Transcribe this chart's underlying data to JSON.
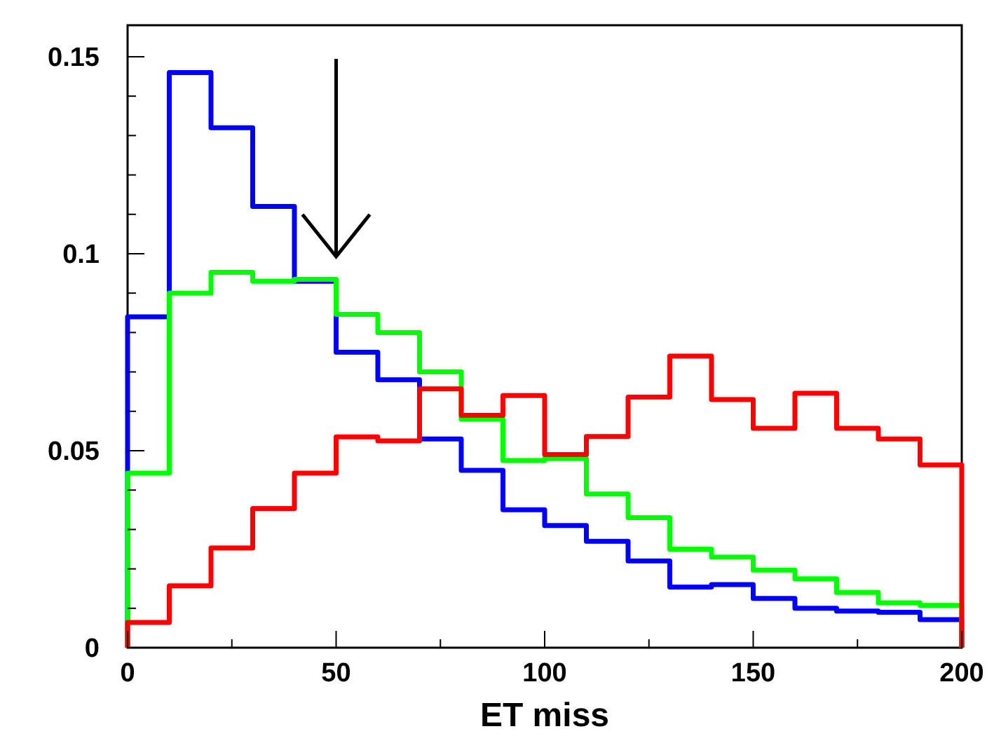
{
  "chart_data": {
    "type": "histogram",
    "xlabel": "ET miss",
    "bins": [
      0,
      10,
      20,
      30,
      40,
      50,
      60,
      70,
      80,
      90,
      100,
      110,
      120,
      130,
      140,
      150,
      160,
      170,
      180,
      190,
      200
    ],
    "series": [
      {
        "color": "#0000ff",
        "values": [
          0.084,
          0.146,
          0.132,
          0.112,
          0.093,
          0.075,
          0.068,
          0.053,
          0.045,
          0.035,
          0.031,
          0.027,
          0.022,
          0.0154,
          0.016,
          0.0125,
          0.01,
          0.0093,
          0.009,
          0.0071
        ]
      },
      {
        "color": "#00ff00",
        "values": [
          0.0443,
          0.09,
          0.0953,
          0.093,
          0.0935,
          0.0846,
          0.08,
          0.07,
          0.058,
          0.0475,
          0.048,
          0.039,
          0.033,
          0.025,
          0.023,
          0.0197,
          0.0175,
          0.014,
          0.0114,
          0.0107
        ]
      },
      {
        "color": "#ff0000",
        "values": [
          0.0064,
          0.0157,
          0.0253,
          0.0353,
          0.0443,
          0.0535,
          0.0525,
          0.0657,
          0.059,
          0.064,
          0.049,
          0.0536,
          0.0636,
          0.074,
          0.063,
          0.0557,
          0.0646,
          0.0557,
          0.053,
          0.0464
        ]
      }
    ],
    "xlim": [
      0,
      200
    ],
    "xticks": [
      0,
      {
        "value": 25,
        "label": null
      },
      50,
      {
        "value": 75,
        "label": null
      },
      100,
      {
        "value": 125,
        "label": null
      },
      150,
      {
        "value": 175,
        "label": null
      },
      200
    ],
    "ylim": [
      0,
      0.158
    ],
    "yticks": [
      0,
      {
        "value": 0.01,
        "label": null
      },
      {
        "value": 0.02,
        "label": null
      },
      {
        "value": 0.03,
        "label": null
      },
      {
        "value": 0.04,
        "label": null
      },
      0.05,
      {
        "value": 0.06,
        "label": null
      },
      {
        "value": 0.07,
        "label": null
      },
      {
        "value": 0.08,
        "label": null
      },
      {
        "value": 0.09,
        "label": null
      },
      0.1,
      {
        "value": 0.11,
        "label": null
      },
      {
        "value": 0.12,
        "label": null
      },
      {
        "value": 0.13,
        "label": null
      },
      {
        "value": 0.14,
        "label": null
      },
      0.15
    ],
    "grid": false
  }
}
